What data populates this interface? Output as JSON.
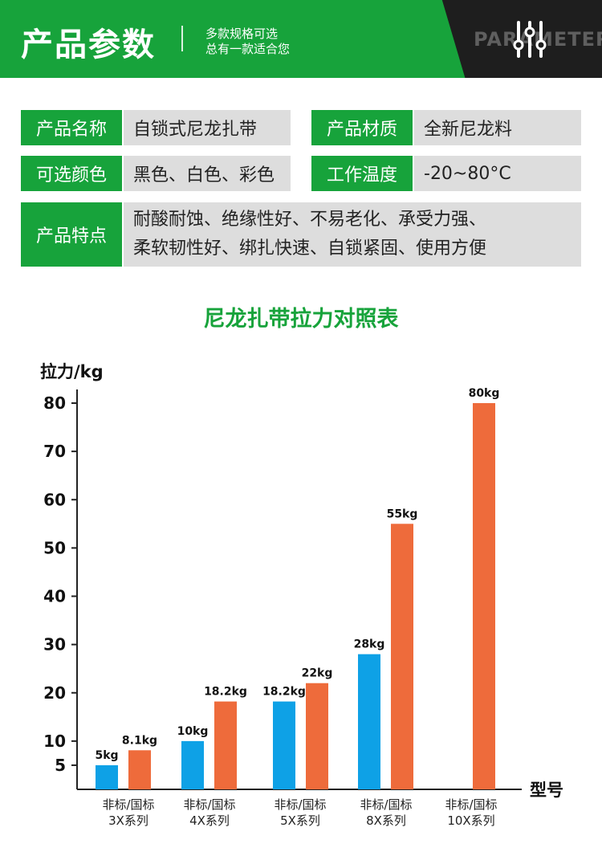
{
  "banner": {
    "title": "产品参数",
    "subtitle_line1": "多款规格可选",
    "subtitle_line2": "总有一款适合您",
    "english": "PARAMETERS",
    "icon": "sliders-icon",
    "colors": {
      "green": "#17a33b",
      "dark": "#1e1e1e"
    }
  },
  "specs": {
    "name_label": "产品名称",
    "name_value": "自锁式尼龙扎带",
    "material_label": "产品材质",
    "material_value": "全新尼龙料",
    "color_label": "可选颜色",
    "color_value": "黑色、白色、彩色",
    "temp_label": "工作温度",
    "temp_value": "-20~80°C",
    "feature_label": "产品特点",
    "feature_line1": "耐酸耐蚀、绝缘性好、不易老化、承受力强、",
    "feature_line2": "柔软韧性好、绑扎快速、自锁紧固、使用方便"
  },
  "chart_data": {
    "type": "bar",
    "title": "尼龙扎带拉力对照表",
    "ylabel": "拉力/kg",
    "xlabel": "型号",
    "ylim": [
      0,
      80
    ],
    "yticks": [
      5,
      10,
      20,
      30,
      40,
      50,
      60,
      70,
      80
    ],
    "categories": [
      [
        "非标/国标",
        "3X系列"
      ],
      [
        "非标/国标",
        "4X系列"
      ],
      [
        "非标/国标",
        "5X系列"
      ],
      [
        "非标/国标",
        "8X系列"
      ],
      [
        "非标/国标",
        "10X系列"
      ]
    ],
    "series": [
      {
        "color": "#0ea1e6",
        "values": [
          5,
          10,
          18.2,
          28,
          null
        ],
        "labels": [
          "5kg",
          "10kg",
          "18.2kg",
          "28kg",
          ""
        ]
      },
      {
        "color": "#ee6b3b",
        "values": [
          8.1,
          18.2,
          22,
          55,
          80
        ],
        "labels": [
          "8.1kg",
          "18.2kg",
          "22kg",
          "55kg",
          "80kg"
        ]
      }
    ],
    "grid": false,
    "legend": "none"
  }
}
